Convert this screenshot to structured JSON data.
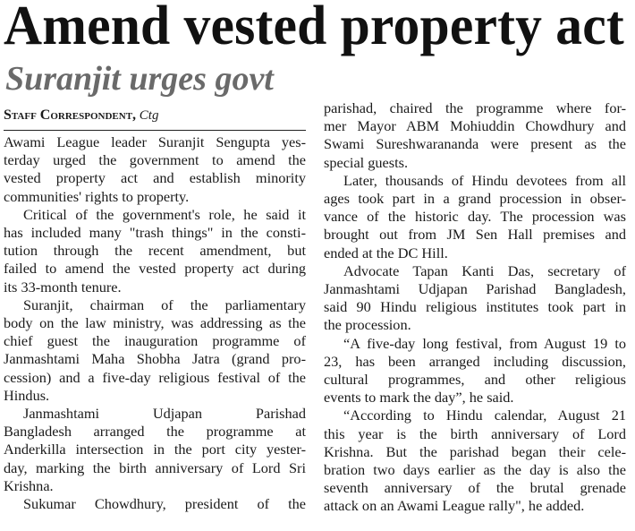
{
  "headline": "Amend vested property act",
  "subheadline": "Suranjit urges govt",
  "byline": {
    "name": "Staff Correspondent,",
    "location": "Ctg"
  },
  "columns": [
    {
      "paragraphs": [
        {
          "continued": false,
          "ends": true,
          "lines": [
            "Awami League leader Suranjit Sengupta yes-",
            "terday urged the government to amend the",
            "vested property act and establish minority",
            "communities' rights to property."
          ]
        },
        {
          "continued": false,
          "ends": true,
          "lines": [
            "Critical of the government's role, he said it",
            "has included many \"trash things\" in the consti-",
            "tution through the recent amendment, but",
            "failed to amend the vested property act during",
            "its 33-month tenure."
          ]
        },
        {
          "continued": false,
          "ends": true,
          "lines": [
            "Suranjit, chairman of the parliamentary",
            "body on the law ministry, was addressing as the",
            "chief guest the inauguration programme of",
            "Janmashtami Maha Shobha Jatra (grand pro-",
            "cession) and a five-day religious festival of the",
            "Hindus."
          ]
        },
        {
          "continued": false,
          "ends": true,
          "lines": [
            "Janmashtami Udjapan Parishad",
            "Bangladesh arranged the programme at",
            "Anderkilla intersection in the port city yester-",
            "day, marking the birth anniversary of Lord Sri",
            "Krishna."
          ]
        },
        {
          "continued": false,
          "ends": false,
          "lines": [
            "Sukumar Chowdhury, president of the"
          ]
        }
      ]
    },
    {
      "paragraphs": [
        {
          "continued": true,
          "ends": true,
          "lines": [
            "parishad, chaired the programme where for-",
            "mer Mayor ABM Mohiuddin Chowdhury and",
            "Swami Sureshwarananda were present as the",
            "special guests."
          ]
        },
        {
          "continued": false,
          "ends": true,
          "lines": [
            "Later, thousands of Hindu devotees from all",
            "ages took part in a grand procession in obser-",
            "vance of the historic day. The procession was",
            "brought out from JM Sen Hall premises and",
            "ended at the DC Hill."
          ]
        },
        {
          "continued": false,
          "ends": true,
          "lines": [
            "Advocate Tapan Kanti Das, secretary of",
            "Janmashtami Udjapan Parishad Bangladesh,",
            "said 90 Hindu religious institutes took part in",
            "the procession."
          ]
        },
        {
          "continued": false,
          "ends": true,
          "lines": [
            "“A five-day long festival, from August 19 to",
            "23, has been arranged including discussion,",
            "cultural programmes, and other religious",
            "events to mark the day”, he said."
          ]
        },
        {
          "continued": false,
          "ends": true,
          "lines": [
            "“According to Hindu calendar, August 21",
            "this year is the birth anniversary of Lord",
            "Krishna. But the parishad began their cele-",
            "bration two days earlier as the day is also the",
            "seventh anniversary of the brutal grenade",
            "attack on an Awami League rally\", he added."
          ]
        }
      ]
    }
  ]
}
